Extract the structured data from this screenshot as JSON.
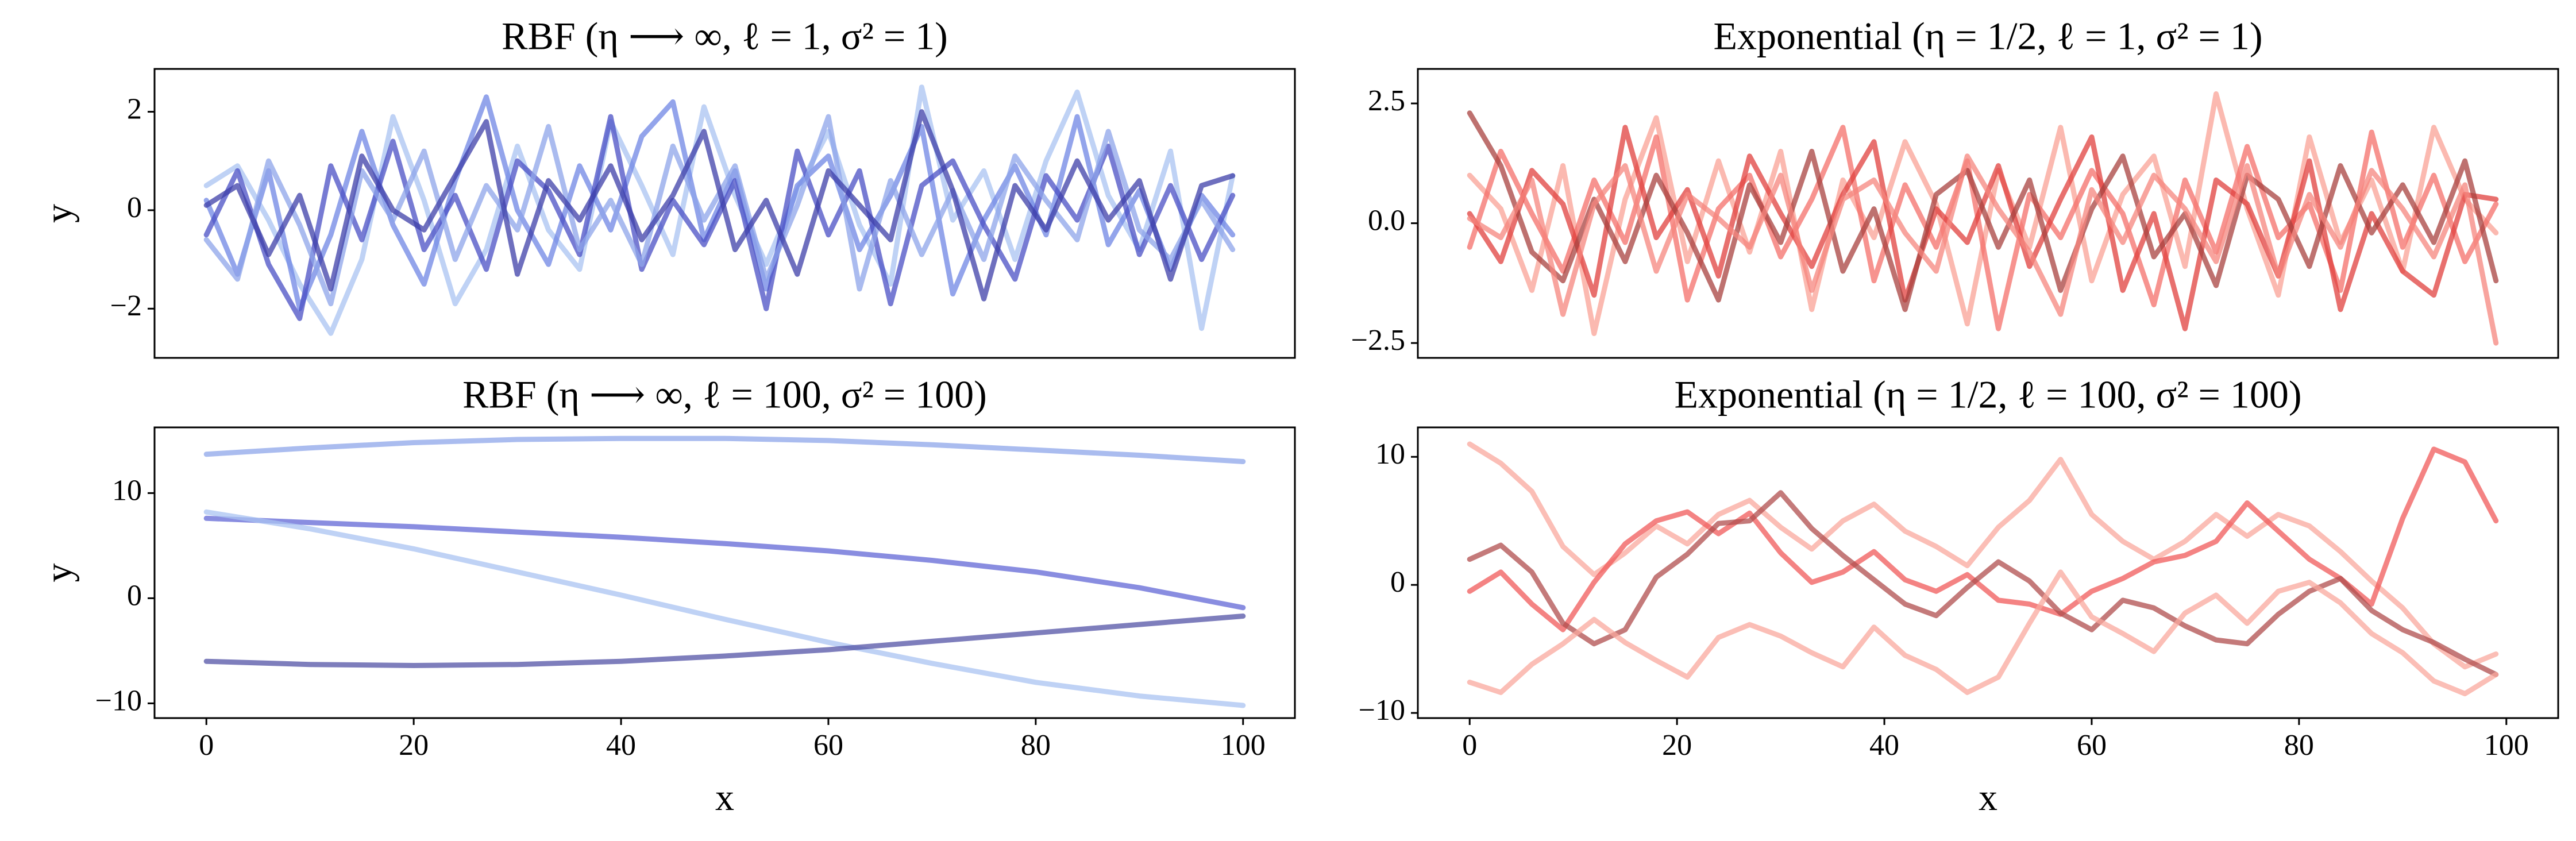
{
  "chart_data": [
    {
      "type": "line",
      "title": "RBF (η ⟶ ∞, ℓ = 1, σ² = 1)",
      "y_label": "y",
      "x": [
        0,
        3,
        6,
        9,
        12,
        15,
        18,
        21,
        24,
        27,
        30,
        33,
        36,
        39,
        42,
        45,
        48,
        51,
        54,
        57,
        60,
        63,
        66,
        69,
        72,
        75,
        78,
        81,
        84,
        87,
        90,
        93,
        96,
        99
      ],
      "xlim": [
        -5,
        105
      ],
      "ylim": [
        -3.0,
        2.87
      ],
      "yticks": [
        {
          "value": -2,
          "label": "−2"
        },
        0,
        2
      ],
      "series": [
        {
          "color": "#a9c3f2",
          "values": [
            0.5,
            0.9,
            -0.2,
            -1.5,
            -2.5,
            -1.0,
            1.9,
            0.2,
            -1.9,
            -0.8,
            1.3,
            -0.4,
            -1.2,
            1.8,
            0.5,
            -0.9,
            2.1,
            0.3,
            -1.1,
            0.4,
            1.6,
            -0.3,
            -1.5,
            2.5,
            -0.2,
            0.8,
            -1.0,
            1.0,
            2.4,
            0.3,
            -0.8,
            1.2,
            -2.4,
            0.7
          ]
        },
        {
          "color": "#6f86e4",
          "values": [
            0.2,
            -1.3,
            0.8,
            -2.0,
            -0.5,
            1.6,
            -0.3,
            -1.5,
            0.6,
            2.3,
            0.0,
            -1.1,
            0.9,
            -0.4,
            1.5,
            2.2,
            -0.6,
            0.8,
            -1.6,
            0.5,
            1.1,
            -0.8,
            0.3,
            1.7,
            -1.7,
            -0.2,
            0.9,
            -0.5,
            1.9,
            -0.7,
            0.4,
            -1.2,
            0.3,
            -0.5
          ]
        },
        {
          "color": "#4a4fc4",
          "values": [
            -0.5,
            0.8,
            -1.1,
            -2.2,
            0.9,
            -0.6,
            1.4,
            -0.8,
            0.3,
            -1.2,
            1.0,
            0.4,
            -0.9,
            1.9,
            -1.2,
            0.2,
            -0.7,
            0.6,
            -2.0,
            1.2,
            -0.5,
            0.8,
            -1.9,
            0.5,
            1.0,
            -0.3,
            -1.4,
            0.7,
            -0.2,
            1.3,
            -0.9,
            0.5,
            -1.0,
            0.3
          ]
        },
        {
          "color": "#8da4ea",
          "values": [
            -0.6,
            -1.4,
            1.0,
            -0.3,
            -1.9,
            0.8,
            -0.2,
            1.2,
            -1.0,
            0.5,
            -0.4,
            1.7,
            -0.8,
            0.2,
            -1.1,
            1.3,
            -0.2,
            0.9,
            -1.4,
            0.1,
            1.9,
            -1.6,
            0.6,
            -0.9,
            0.4,
            -1.0,
            1.1,
            0.2,
            -0.6,
            1.6,
            -0.4,
            -1.0,
            0.2,
            -0.8
          ]
        },
        {
          "color": "#3d3fa8",
          "values": [
            0.1,
            0.5,
            -0.9,
            0.3,
            -1.6,
            1.1,
            0.0,
            -0.4,
            0.7,
            1.8,
            -1.3,
            0.6,
            -0.2,
            0.9,
            -0.6,
            0.3,
            1.6,
            -0.8,
            0.2,
            -1.3,
            0.8,
            0.1,
            -0.6,
            2.0,
            0.4,
            -1.8,
            0.5,
            -0.4,
            1.0,
            -0.2,
            0.6,
            -1.4,
            0.5,
            0.7
          ]
        }
      ]
    },
    {
      "type": "line",
      "title": "Exponential (η = 1/2, ℓ = 1, σ² = 1)",
      "x": [
        0,
        3,
        6,
        9,
        12,
        15,
        18,
        21,
        24,
        27,
        30,
        33,
        36,
        39,
        42,
        45,
        48,
        51,
        54,
        57,
        60,
        63,
        66,
        69,
        72,
        75,
        78,
        81,
        84,
        87,
        90,
        93,
        96,
        99
      ],
      "xlim": [
        -5,
        105
      ],
      "ylim": [
        -2.81,
        3.22
      ],
      "yticks": [
        {
          "value": -2.5,
          "label": "−2.5"
        },
        {
          "value": 0,
          "label": "0.0"
        },
        2.5
      ],
      "series": [
        {
          "color": "#f9a196",
          "values": [
            1.0,
            0.3,
            -1.4,
            1.2,
            -2.3,
            0.5,
            2.2,
            -0.8,
            1.3,
            -0.6,
            1.5,
            -1.8,
            0.9,
            -0.3,
            1.7,
            0.4,
            -2.1,
            1.1,
            -0.5,
            2.0,
            -1.2,
            0.6,
            1.4,
            -0.9,
            2.7,
            0.3,
            -1.5,
            1.8,
            -0.4,
            0.9,
            -1.0,
            2.0,
            0.5,
            -0.2
          ]
        },
        {
          "color": "#f46f6a",
          "values": [
            -0.5,
            1.5,
            0.2,
            -1.0,
            0.9,
            -0.4,
            1.8,
            -1.6,
            0.3,
            1.0,
            -0.7,
            0.5,
            2.0,
            -1.2,
            0.8,
            -0.5,
            1.3,
            -2.2,
            0.6,
            -0.3,
            1.1,
            0.2,
            -1.7,
            0.9,
            -0.6,
            1.6,
            -0.3,
            0.4,
            -1.4,
            1.9,
            -0.5,
            1.0,
            -0.8,
            0.4
          ]
        },
        {
          "color": "#e0403e",
          "values": [
            0.2,
            -0.8,
            1.1,
            0.4,
            -1.5,
            2.0,
            -0.3,
            0.7,
            -1.1,
            1.4,
            0.2,
            -0.9,
            0.6,
            1.7,
            -1.6,
            0.3,
            -0.4,
            1.2,
            -0.9,
            0.5,
            1.8,
            -1.4,
            0.2,
            -2.2,
            0.9,
            0.4,
            -1.1,
            1.3,
            -1.8,
            0.2,
            -1.0,
            -1.5,
            0.6,
            0.5
          ]
        },
        {
          "color": "#a8413f",
          "values": [
            2.3,
            1.2,
            -0.6,
            -1.2,
            0.5,
            -0.8,
            1.0,
            -0.2,
            -1.6,
            0.8,
            -0.4,
            1.5,
            -1.0,
            0.3,
            -1.8,
            0.6,
            1.1,
            -0.5,
            0.9,
            -1.4,
            0.3,
            1.4,
            -0.7,
            0.2,
            -1.3,
            1.0,
            0.5,
            -0.9,
            1.2,
            -0.2,
            0.8,
            -0.4,
            1.3,
            -1.2
          ]
        },
        {
          "color": "#f5867e",
          "values": [
            0.1,
            -0.3,
            0.9,
            -1.9,
            0.4,
            1.2,
            -1.0,
            0.6,
            0.1,
            -0.5,
            1.0,
            -1.4,
            0.5,
            0.9,
            -0.2,
            -1.0,
            1.4,
            0.3,
            -0.6,
            -1.9,
            0.7,
            -0.4,
            1.0,
            0.3,
            -0.8,
            1.2,
            -1.1,
            0.6,
            -0.5,
            1.1,
            0.3,
            -0.7,
            0.8,
            -2.5
          ]
        }
      ]
    },
    {
      "type": "line",
      "title": "RBF (η ⟶ ∞, ℓ = 100, σ² = 100)",
      "y_label": "y",
      "x_label": "x",
      "x": [
        0,
        10,
        20,
        30,
        40,
        50,
        60,
        70,
        80,
        90,
        100
      ],
      "xlim": [
        -5,
        105
      ],
      "ylim": [
        -11.4,
        16.25
      ],
      "xticks": [
        0,
        20,
        40,
        60,
        80,
        100
      ],
      "yticks": [
        {
          "value": -10,
          "label": "−10"
        },
        0,
        10
      ],
      "series": [
        {
          "color": "#8ea5ea",
          "values": [
            13.7,
            14.3,
            14.8,
            15.1,
            15.2,
            15.2,
            15.0,
            14.6,
            14.1,
            13.6,
            13.0
          ]
        },
        {
          "color": "#6267d6",
          "values": [
            7.6,
            7.2,
            6.8,
            6.3,
            5.8,
            5.2,
            4.5,
            3.6,
            2.5,
            1.0,
            -0.9
          ]
        },
        {
          "color": "#a9c3f2",
          "values": [
            8.2,
            6.6,
            4.7,
            2.5,
            0.3,
            -2.0,
            -4.2,
            -6.2,
            -8.0,
            -9.3,
            -10.2
          ]
        },
        {
          "color": "#5353a6",
          "values": [
            -6.0,
            -6.3,
            -6.4,
            -6.3,
            -6.0,
            -5.5,
            -4.9,
            -4.1,
            -3.3,
            -2.5,
            -1.7
          ]
        }
      ]
    },
    {
      "type": "line",
      "title": "Exponential (η = 1/2, ℓ = 100, σ² = 100)",
      "x_label": "x",
      "x": [
        0,
        3,
        6,
        9,
        12,
        15,
        18,
        21,
        24,
        27,
        30,
        33,
        36,
        39,
        42,
        45,
        48,
        51,
        54,
        57,
        60,
        63,
        66,
        69,
        72,
        75,
        78,
        81,
        84,
        87,
        90,
        93,
        96,
        99
      ],
      "xlim": [
        -5,
        105
      ],
      "ylim": [
        -10.4,
        12.3
      ],
      "xticks": [
        0,
        20,
        40,
        60,
        80,
        100
      ],
      "yticks": [
        {
          "value": -10,
          "label": "−10"
        },
        0,
        10
      ],
      "series": [
        {
          "color": "#f9a89e",
          "values": [
            11.0,
            9.5,
            7.3,
            3.0,
            0.8,
            2.5,
            4.6,
            3.2,
            5.5,
            6.6,
            4.5,
            2.8,
            5.0,
            6.3,
            4.2,
            3.0,
            1.5,
            4.5,
            6.6,
            9.8,
            5.5,
            3.4,
            2.0,
            3.4,
            5.5,
            3.8,
            5.5,
            4.6,
            2.6,
            0.3,
            -1.8,
            -4.6,
            -6.4,
            -5.4
          ]
        },
        {
          "color": "#f05a5a",
          "values": [
            -0.5,
            1.0,
            -1.5,
            -3.5,
            0.2,
            3.2,
            5.0,
            5.7,
            4.0,
            5.6,
            2.5,
            0.2,
            1.0,
            2.6,
            0.4,
            -0.5,
            0.8,
            -1.2,
            -1.5,
            -2.3,
            -0.5,
            0.5,
            1.8,
            2.3,
            3.4,
            6.4,
            4.2,
            2.0,
            0.5,
            -1.5,
            5.2,
            10.6,
            9.6,
            5.0
          ]
        },
        {
          "color": "#b04e4e",
          "values": [
            2.0,
            3.1,
            1.0,
            -3.0,
            -4.6,
            -3.5,
            0.6,
            2.4,
            4.8,
            5.0,
            7.2,
            4.4,
            2.3,
            0.4,
            -1.5,
            -2.4,
            -0.2,
            1.8,
            0.3,
            -2.2,
            -3.5,
            -1.2,
            -1.8,
            -3.2,
            -4.3,
            -4.6,
            -2.3,
            -0.5,
            0.5,
            -2.0,
            -3.5,
            -4.5,
            -5.8,
            -7.0
          ]
        },
        {
          "color": "#f9a89e",
          "values": [
            -7.6,
            -8.4,
            -6.2,
            -4.6,
            -2.7,
            -4.5,
            -5.9,
            -7.2,
            -4.1,
            -3.1,
            -4.0,
            -5.3,
            -6.4,
            -3.3,
            -5.5,
            -6.6,
            -8.4,
            -7.2,
            -3.0,
            1.0,
            -2.5,
            -3.8,
            -5.2,
            -2.2,
            -0.8,
            -3.0,
            -0.5,
            0.2,
            -1.4,
            -3.8,
            -5.3,
            -7.5,
            -8.5,
            -7.0
          ]
        }
      ]
    }
  ]
}
